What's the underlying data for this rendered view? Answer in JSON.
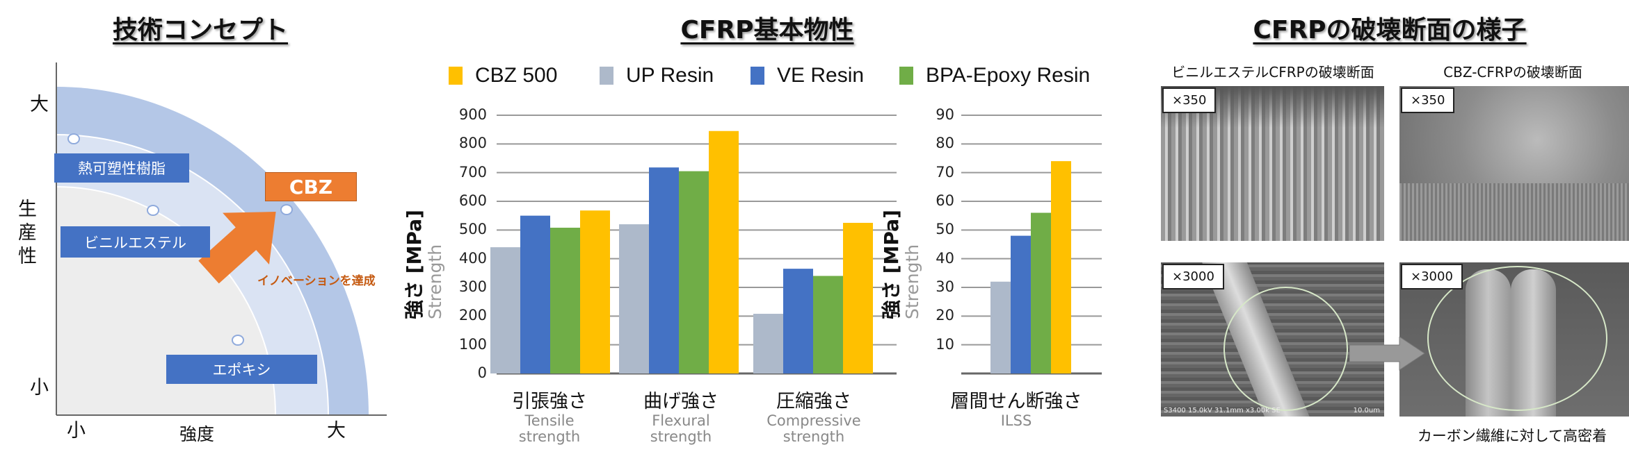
{
  "left_panel": {
    "title": "技術コンセプト",
    "y_axis": {
      "label": "生産性",
      "high": "大",
      "low": "小"
    },
    "x_axis": {
      "label": "強度",
      "low": "小",
      "high": "大"
    },
    "boxes": [
      "熱可塑性樹脂",
      "ビニルエステル",
      "エポキシ"
    ],
    "cbz_label": "CBZ",
    "arrow_caption": "イノベーションを達成",
    "colors": {
      "box": "#4472c4",
      "accent": "#ed7d31",
      "outer_band": "#b4c7e7",
      "inner_band": "#dae3f3",
      "core": "#ededed"
    }
  },
  "chart_data": [
    {
      "type": "bar",
      "title": "CFRP基本物性",
      "ylabel": "強さ [MPa]",
      "ylabel_en": "Strength",
      "ylim": [
        0,
        900
      ],
      "yticks": [
        "0",
        "100",
        "200",
        "300",
        "400",
        "500",
        "600",
        "700",
        "800",
        "900"
      ],
      "grid": true,
      "legend_position": "top",
      "categories": [
        {
          "jp": "引張強さ",
          "en1": "Tensile",
          "en2": "strength"
        },
        {
          "jp": "曲げ強さ",
          "en1": "Flexural",
          "en2": "strength"
        },
        {
          "jp": "圧縮強さ",
          "en1": "Compressive",
          "en2": "strength"
        }
      ],
      "series": [
        {
          "name": "UP Resin",
          "color": "#adb9ca",
          "values": [
            440,
            520,
            208
          ]
        },
        {
          "name": "VE Resin",
          "color": "#4472c4",
          "values": [
            550,
            718,
            365
          ]
        },
        {
          "name": "BPA-Epoxy Resin",
          "color": "#70ad47",
          "values": [
            508,
            705,
            340
          ]
        },
        {
          "name": "CBZ 500",
          "color": "#ffc000",
          "values": [
            568,
            845,
            525
          ]
        }
      ]
    },
    {
      "type": "bar",
      "ylabel": "強さ [MPa]",
      "ylabel_en": "Strength",
      "ylim": [
        0,
        90
      ],
      "yticks": [
        "10",
        "20",
        "30",
        "40",
        "50",
        "60",
        "70",
        "80",
        "90"
      ],
      "grid": true,
      "categories": [
        {
          "jp": "層間せん断強さ",
          "en1": "ILSS"
        }
      ],
      "series": [
        {
          "name": "UP Resin",
          "color": "#adb9ca",
          "values": [
            32
          ]
        },
        {
          "name": "VE Resin",
          "color": "#4472c4",
          "values": [
            48
          ]
        },
        {
          "name": "BPA-Epoxy Resin",
          "color": "#70ad47",
          "values": [
            56
          ]
        },
        {
          "name": "CBZ 500",
          "color": "#ffc000",
          "values": [
            74
          ]
        }
      ]
    }
  ],
  "legend": [
    {
      "name": "CBZ 500",
      "color": "#ffc000"
    },
    {
      "name": "UP Resin",
      "color": "#adb9ca"
    },
    {
      "name": "VE Resin",
      "color": "#4472c4"
    },
    {
      "name": "BPA-Epoxy Resin",
      "color": "#70ad47"
    }
  ],
  "right_panel": {
    "title": "CFRPの破壊断面の様子",
    "col_left": "ビニルエステルCFRPの破壊断面",
    "col_right": "CBZ-CFRPの破壊断面",
    "mag_low": "×350",
    "mag_high": "×3000",
    "sem_footer": "S3400 15.0kV 31.1mm x3.00k SE",
    "sem_scale": "10.0um",
    "caption": "カーボン繊維に対して高密着"
  }
}
